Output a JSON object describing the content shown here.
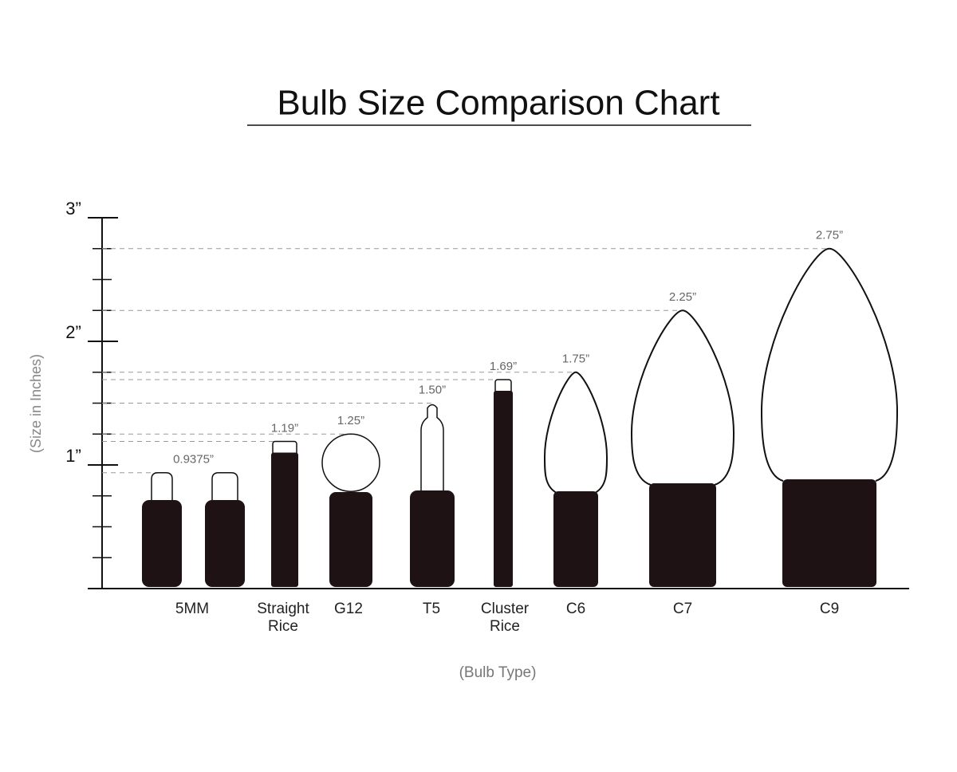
{
  "chart_data": {
    "type": "pictograph",
    "title": "Bulb Size Comparison Chart",
    "y_label": "(Size in Inches)",
    "x_label": "(Bulb Type)",
    "categories": [
      "5MM",
      "Straight Rice",
      "G12",
      "T5",
      "Cluster Rice",
      "C6",
      "C7",
      "C9"
    ],
    "values": [
      0.9375,
      1.19,
      1.25,
      1.5,
      1.69,
      1.75,
      2.25,
      2.75
    ],
    "value_labels": [
      "0.9375”",
      "1.19”",
      "1.25”",
      "1.50”",
      "1.69”",
      "1.75”",
      "2.25”",
      "2.75”"
    ],
    "ylim": [
      0,
      3
    ],
    "yticks": [
      {
        "value": 1,
        "label": "1”"
      },
      {
        "value": 2,
        "label": "2”"
      },
      {
        "value": 3,
        "label": "3”"
      }
    ],
    "yminorticks": [
      0.25,
      0.5,
      0.75,
      1.25,
      1.5,
      1.75,
      2.25,
      2.5,
      2.75
    ],
    "color": "#1e1214"
  }
}
